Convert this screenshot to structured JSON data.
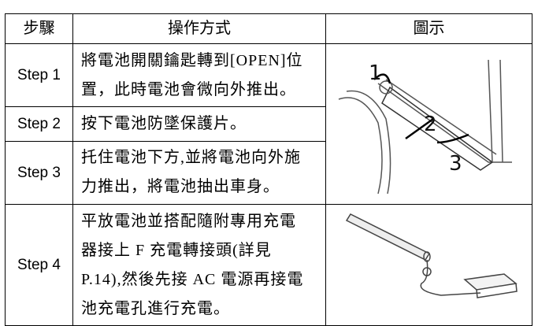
{
  "table": {
    "header": [
      "步驟",
      "操作方式",
      "圖示"
    ],
    "rows": [
      {
        "step": "Step 1",
        "lines": [
          "將電池開關鑰匙轉到[OPEN]位",
          "置，此時電池會微向外推出。"
        ]
      },
      {
        "step": "Step 2",
        "lines": [
          "按下電池防墜保護片。"
        ]
      },
      {
        "step": "Step 3",
        "lines": [
          "托住電池下方,並將電池向外施",
          "力推出，將電池抽出車身。"
        ]
      },
      {
        "step": "Step 4",
        "lines": [
          "平放電池並搭配隨附專用充電",
          "器接上 F 充電轉接頭(詳見",
          "P.14),然後先接 AC 電源再接電",
          "池充電孔進行充電。"
        ]
      }
    ]
  },
  "illustration": {
    "labels": [
      "1",
      "2",
      "3"
    ]
  }
}
